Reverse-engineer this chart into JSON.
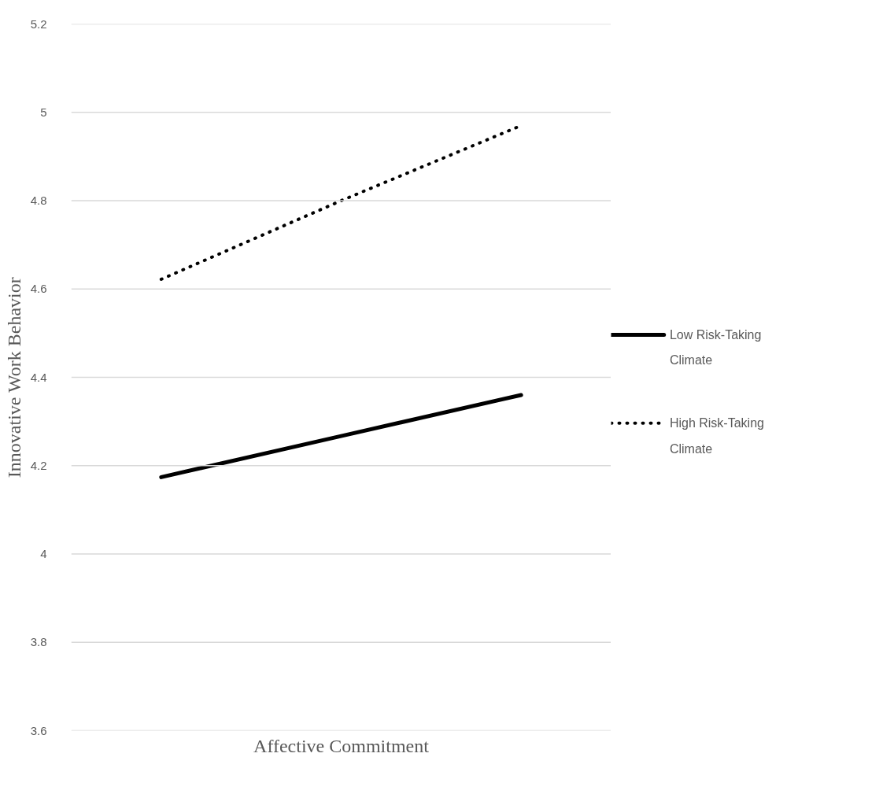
{
  "chart_data": {
    "type": "line",
    "xlabel": "Affective Commitment",
    "ylabel": "Innovative Work Behavior",
    "categories": [
      null,
      null,
      null
    ],
    "series": [
      {
        "name": "Low Risk-Taking Climate",
        "color": "#000000",
        "values": [
          4.174,
          4.267,
          4.36
        ],
        "line_style": "solid"
      },
      {
        "name": "High Risk-Taking Climate",
        "color": "#000000",
        "values": [
          4.622,
          4.8,
          4.97
        ],
        "line_style": "dotted"
      }
    ],
    "ylim": [
      3.6,
      5.2
    ],
    "yticks": [
      3.6,
      3.8,
      4,
      4.2,
      4.4,
      4.6,
      4.8,
      5,
      5.2
    ],
    "grid": "y",
    "legend": "right",
    "marker": "none"
  }
}
